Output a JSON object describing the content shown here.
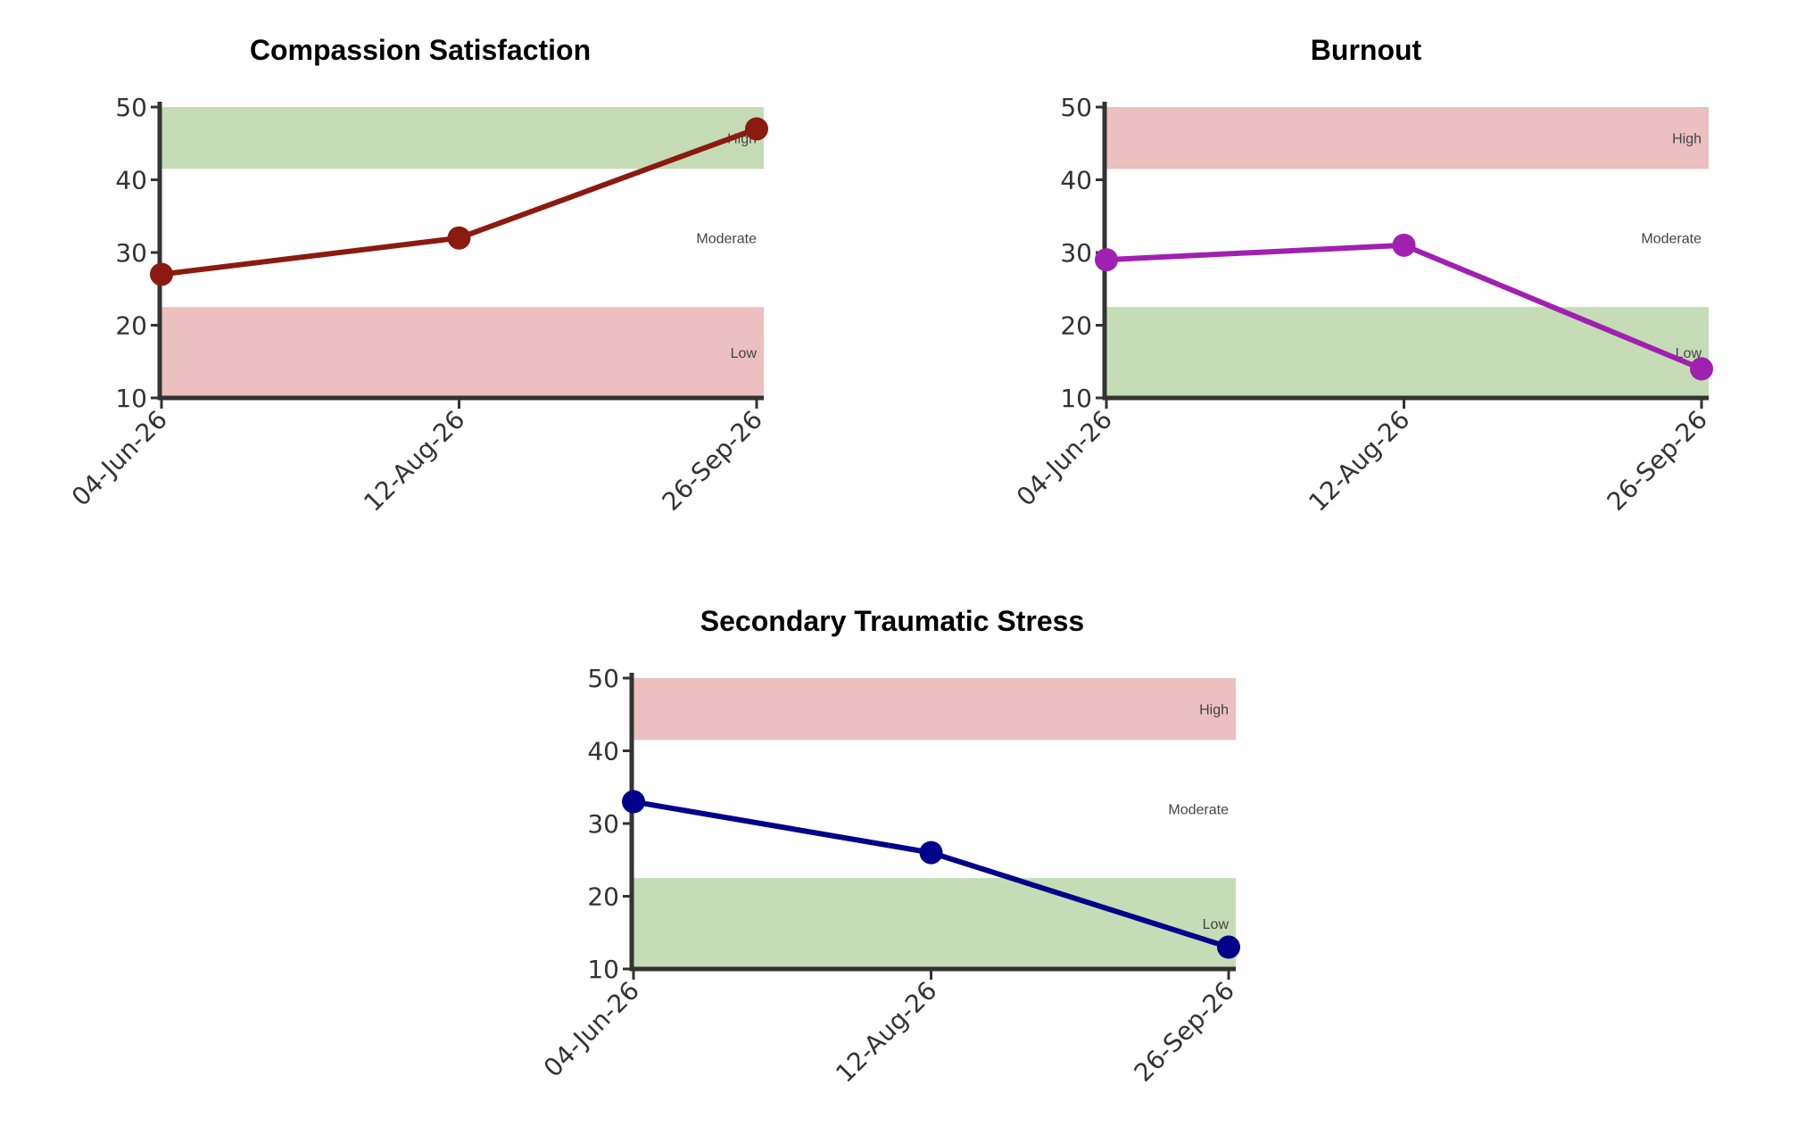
{
  "colors": {
    "good_band": "#c5dcb6",
    "bad_band": "#ecc0c0",
    "axis": "#333333"
  },
  "chart_data": [
    {
      "type": "line",
      "title": "Compassion Satisfaction",
      "x": [
        "04-Jun-26",
        "12-Aug-26",
        "26-Sep-26"
      ],
      "series": [
        {
          "values": [
            27,
            32,
            47
          ],
          "color": "#8b1a10"
        }
      ],
      "ylim": [
        10,
        50
      ],
      "yticks": [
        10,
        20,
        30,
        40,
        50
      ],
      "bands": [
        {
          "label": "High",
          "from": 41.5,
          "to": 50,
          "tone": "good"
        },
        {
          "label": "Moderate",
          "from": 22.5,
          "to": 41.5,
          "tone": "none"
        },
        {
          "label": "Low",
          "from": 10,
          "to": 22.5,
          "tone": "bad"
        }
      ]
    },
    {
      "type": "line",
      "title": "Burnout",
      "x": [
        "04-Jun-26",
        "12-Aug-26",
        "26-Sep-26"
      ],
      "series": [
        {
          "values": [
            29,
            31,
            14
          ],
          "color": "#a020b0"
        }
      ],
      "ylim": [
        10,
        50
      ],
      "yticks": [
        10,
        20,
        30,
        40,
        50
      ],
      "bands": [
        {
          "label": "High",
          "from": 41.5,
          "to": 50,
          "tone": "bad"
        },
        {
          "label": "Moderate",
          "from": 22.5,
          "to": 41.5,
          "tone": "none"
        },
        {
          "label": "Low",
          "from": 10,
          "to": 22.5,
          "tone": "good"
        }
      ]
    },
    {
      "type": "line",
      "title": "Secondary Traumatic Stress",
      "x": [
        "04-Jun-26",
        "12-Aug-26",
        "26-Sep-26"
      ],
      "series": [
        {
          "values": [
            33,
            26,
            13
          ],
          "color": "#00008b"
        }
      ],
      "ylim": [
        10,
        50
      ],
      "yticks": [
        10,
        20,
        30,
        40,
        50
      ],
      "bands": [
        {
          "label": "High",
          "from": 41.5,
          "to": 50,
          "tone": "bad"
        },
        {
          "label": "Moderate",
          "from": 22.5,
          "to": 41.5,
          "tone": "none"
        },
        {
          "label": "Low",
          "from": 10,
          "to": 22.5,
          "tone": "good"
        }
      ]
    }
  ]
}
